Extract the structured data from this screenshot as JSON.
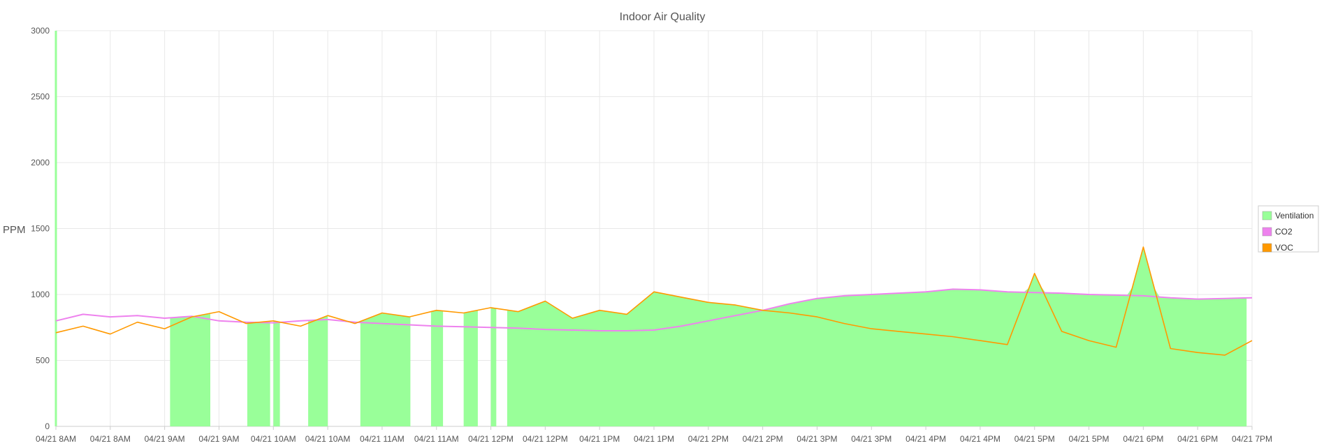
{
  "chart_data": {
    "type": "line",
    "title": "Indoor Air Quality",
    "ylabel": "PPM",
    "xlabel": "",
    "ylim": [
      0,
      3000
    ],
    "yticks": [
      0,
      500,
      1000,
      1500,
      2000,
      2500,
      3000
    ],
    "xticks": [
      "04/21 8AM",
      "04/21 8AM",
      "04/21 9AM",
      "04/21 9AM",
      "04/21 10AM",
      "04/21 10AM",
      "04/21 11AM",
      "04/21 11AM",
      "04/21 12PM",
      "04/21 12PM",
      "04/21 1PM",
      "04/21 1PM",
      "04/21 2PM",
      "04/21 2PM",
      "04/21 3PM",
      "04/21 3PM",
      "04/21 4PM",
      "04/21 4PM",
      "04/21 5PM",
      "04/21 5PM",
      "04/21 6PM",
      "04/21 6PM",
      "04/21 7PM"
    ],
    "grid": true,
    "legend_position": "right",
    "legend": [
      {
        "name": "Ventilation",
        "color": "#99ff99"
      },
      {
        "name": "CO2",
        "color": "#ee82ee"
      },
      {
        "name": "VOC",
        "color": "#ff9900"
      }
    ],
    "x_range_hours": [
      0,
      11
    ],
    "series": [
      {
        "name": "CO2",
        "type": "line",
        "color": "#ee82ee",
        "points": [
          [
            0,
            800
          ],
          [
            0.25,
            850
          ],
          [
            0.5,
            830
          ],
          [
            0.75,
            840
          ],
          [
            1.0,
            820
          ],
          [
            1.25,
            835
          ],
          [
            1.5,
            800
          ],
          [
            1.75,
            790
          ],
          [
            2.0,
            785
          ],
          [
            2.25,
            800
          ],
          [
            2.5,
            810
          ],
          [
            2.75,
            790
          ],
          [
            3.0,
            780
          ],
          [
            3.25,
            770
          ],
          [
            3.5,
            760
          ],
          [
            3.75,
            755
          ],
          [
            4.0,
            750
          ],
          [
            4.25,
            745
          ],
          [
            4.5,
            735
          ],
          [
            4.75,
            730
          ],
          [
            5.0,
            725
          ],
          [
            5.25,
            725
          ],
          [
            5.5,
            730
          ],
          [
            5.75,
            760
          ],
          [
            6.0,
            800
          ],
          [
            6.25,
            840
          ],
          [
            6.5,
            880
          ],
          [
            6.75,
            930
          ],
          [
            7.0,
            970
          ],
          [
            7.25,
            990
          ],
          [
            7.5,
            1000
          ],
          [
            7.75,
            1010
          ],
          [
            8.0,
            1020
          ],
          [
            8.25,
            1040
          ],
          [
            8.5,
            1035
          ],
          [
            8.75,
            1020
          ],
          [
            9.0,
            1015
          ],
          [
            9.25,
            1010
          ],
          [
            9.5,
            1000
          ],
          [
            9.75,
            995
          ],
          [
            10.0,
            990
          ],
          [
            10.25,
            975
          ],
          [
            10.5,
            965
          ],
          [
            10.75,
            970
          ],
          [
            11.0,
            975
          ]
        ]
      },
      {
        "name": "VOC",
        "type": "line",
        "color": "#ff9900",
        "points": [
          [
            0,
            710
          ],
          [
            0.25,
            760
          ],
          [
            0.5,
            700
          ],
          [
            0.75,
            790
          ],
          [
            1.0,
            740
          ],
          [
            1.25,
            830
          ],
          [
            1.5,
            870
          ],
          [
            1.75,
            780
          ],
          [
            2.0,
            800
          ],
          [
            2.25,
            760
          ],
          [
            2.5,
            840
          ],
          [
            2.75,
            780
          ],
          [
            3.0,
            860
          ],
          [
            3.25,
            830
          ],
          [
            3.5,
            880
          ],
          [
            3.75,
            860
          ],
          [
            4.0,
            900
          ],
          [
            4.25,
            870
          ],
          [
            4.5,
            950
          ],
          [
            4.75,
            820
          ],
          [
            5.0,
            880
          ],
          [
            5.25,
            850
          ],
          [
            5.5,
            1020
          ],
          [
            5.75,
            980
          ],
          [
            6.0,
            940
          ],
          [
            6.25,
            920
          ],
          [
            6.5,
            880
          ],
          [
            6.75,
            860
          ],
          [
            7.0,
            830
          ],
          [
            7.25,
            780
          ],
          [
            7.5,
            740
          ],
          [
            7.75,
            720
          ],
          [
            8.0,
            700
          ],
          [
            8.25,
            680
          ],
          [
            8.5,
            650
          ],
          [
            8.75,
            620
          ],
          [
            9.0,
            1160
          ],
          [
            9.25,
            720
          ],
          [
            9.5,
            650
          ],
          [
            9.75,
            600
          ],
          [
            10.0,
            1360
          ],
          [
            10.25,
            590
          ],
          [
            10.5,
            560
          ],
          [
            10.75,
            540
          ],
          [
            11.0,
            650
          ]
        ]
      },
      {
        "name": "Ventilation",
        "type": "area",
        "color": "#99ff99",
        "segments": [
          [
            1.05,
            1.42
          ],
          [
            1.76,
            1.97
          ],
          [
            2.0,
            2.06
          ],
          [
            2.32,
            2.5
          ],
          [
            2.8,
            3.26
          ],
          [
            3.45,
            3.56
          ],
          [
            3.75,
            3.88
          ],
          [
            4.0,
            4.05
          ],
          [
            4.15,
            10.95
          ]
        ]
      }
    ]
  }
}
